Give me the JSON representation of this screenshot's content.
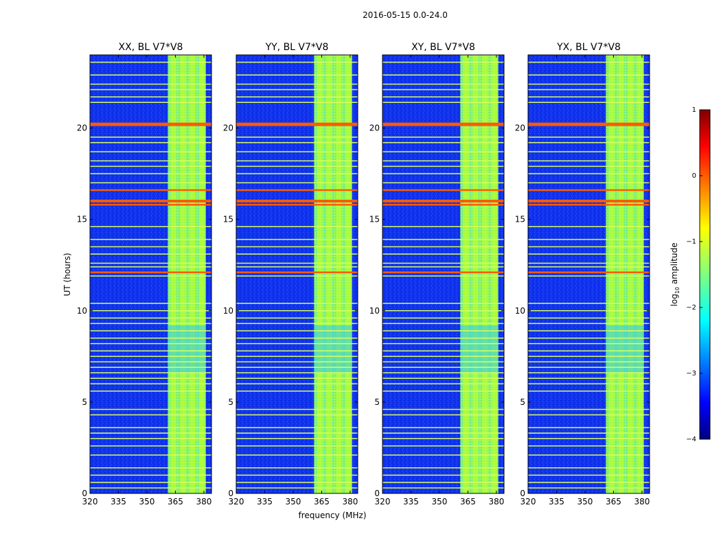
{
  "figure": {
    "suptitle": "2016-05-15 0.0-24.0",
    "xlabel": "frequency (MHz)",
    "ylabel": "UT (hours)",
    "colorbar_label": "log",
    "colorbar_label_sub": "10",
    "colorbar_label_rest": " amplitude"
  },
  "chart_data": [
    {
      "type": "heatmap",
      "title": "XX, BL V7*V8",
      "xlabel": "frequency (MHz)",
      "ylabel": "UT (hours)",
      "x_ticks": [
        320,
        335,
        350,
        365,
        380
      ],
      "y_ticks": [
        0,
        5,
        10,
        15,
        20
      ],
      "xlim": [
        320,
        384
      ],
      "ylim": [
        0,
        24
      ],
      "signal_band_mhz": [
        361,
        381
      ],
      "signal_channels_mhz": [
        364,
        369,
        374,
        379
      ],
      "strong_rfi_hours": [
        20.2,
        16.0,
        15.8,
        16.6,
        12.1
      ],
      "clim": [
        -4,
        1
      ]
    },
    {
      "type": "heatmap",
      "title": "YY, BL V7*V8",
      "xlabel": "frequency (MHz)",
      "ylabel": "UT (hours)",
      "x_ticks": [
        320,
        335,
        350,
        365,
        380
      ],
      "y_ticks": [
        0,
        5,
        10,
        15,
        20
      ],
      "xlim": [
        320,
        384
      ],
      "ylim": [
        0,
        24
      ],
      "signal_band_mhz": [
        361,
        381
      ],
      "signal_channels_mhz": [
        364,
        369,
        374,
        379
      ],
      "strong_rfi_hours": [
        20.2,
        16.0,
        15.8,
        16.6,
        12.1
      ],
      "clim": [
        -4,
        1
      ]
    },
    {
      "type": "heatmap",
      "title": "XY, BL V7*V8",
      "xlabel": "frequency (MHz)",
      "ylabel": "UT (hours)",
      "x_ticks": [
        320,
        335,
        350,
        365,
        380
      ],
      "y_ticks": [
        0,
        5,
        10,
        15,
        20
      ],
      "xlim": [
        320,
        384
      ],
      "ylim": [
        0,
        24
      ],
      "signal_band_mhz": [
        361,
        381
      ],
      "signal_channels_mhz": [
        364,
        369,
        374,
        379
      ],
      "strong_rfi_hours": [
        20.2,
        16.0,
        15.8,
        16.6,
        12.1
      ],
      "clim": [
        -4,
        1
      ]
    },
    {
      "type": "heatmap",
      "title": "YX, BL V7*V8",
      "xlabel": "frequency (MHz)",
      "ylabel": "UT (hours)",
      "x_ticks": [
        320,
        335,
        350,
        365,
        380
      ],
      "y_ticks": [
        0,
        5,
        10,
        15,
        20
      ],
      "xlim": [
        320,
        384
      ],
      "ylim": [
        0,
        24
      ],
      "signal_band_mhz": [
        361,
        381
      ],
      "signal_channels_mhz": [
        364,
        369,
        374,
        379
      ],
      "strong_rfi_hours": [
        20.2,
        16.0,
        15.8,
        16.6,
        12.1
      ],
      "clim": [
        -4,
        1
      ]
    }
  ],
  "colorbar": {
    "colormap": "jet",
    "range": [
      -4,
      1
    ],
    "ticks": [
      "1",
      "0",
      "−1",
      "−2",
      "−3",
      "−4"
    ]
  },
  "colors": {
    "background_value": "#0a2fe0",
    "band_value": "#8cf56a",
    "rfi_strong": "#ff5a00",
    "rfi_weak": "#d8ff60"
  }
}
